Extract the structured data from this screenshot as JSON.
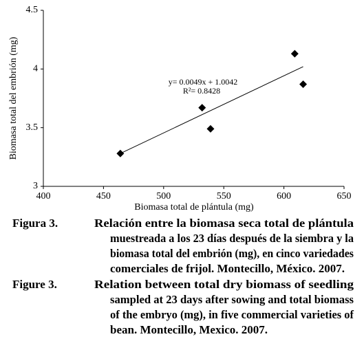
{
  "chart_data": {
    "type": "scatter",
    "x_label": "Biomasa total de plántula (mg)",
    "y_label": "Biomasa total del embrión (mg)",
    "x": [
      464,
      532,
      539,
      609,
      616
    ],
    "values": [
      3.28,
      3.67,
      3.49,
      4.13,
      3.87
    ],
    "color": "#000000",
    "trendline": {
      "x": [
        464,
        616
      ],
      "y": [
        3.28,
        4.02
      ]
    },
    "annotations": [
      "y= 0.0049x + 1.0042",
      "R²= 0.8428"
    ],
    "xlim": [
      400,
      650
    ],
    "xticks": [
      400,
      450,
      500,
      550,
      600,
      650
    ],
    "ylim": [
      3,
      4.5
    ],
    "yticks": [
      3,
      3.5,
      4,
      4.5
    ]
  },
  "captions": [
    {
      "label": "Figura 3.",
      "lines": [
        "Relación entre la biomasa seca total de plántula",
        "muestreada a los 23 días después de la siembra y la",
        "biomasa total del embrión (mg), en cinco variedades",
        "comerciales de frijol. Montecillo, México. 2007."
      ]
    },
    {
      "label": "Figure 3.",
      "lines": [
        "Relation between total dry biomass of seedling",
        "sampled at 23 days after sowing and total biomass",
        "of the embryo (mg), in five commercial varieties of",
        "bean. Montecillo, Mexico. 2007."
      ]
    }
  ]
}
